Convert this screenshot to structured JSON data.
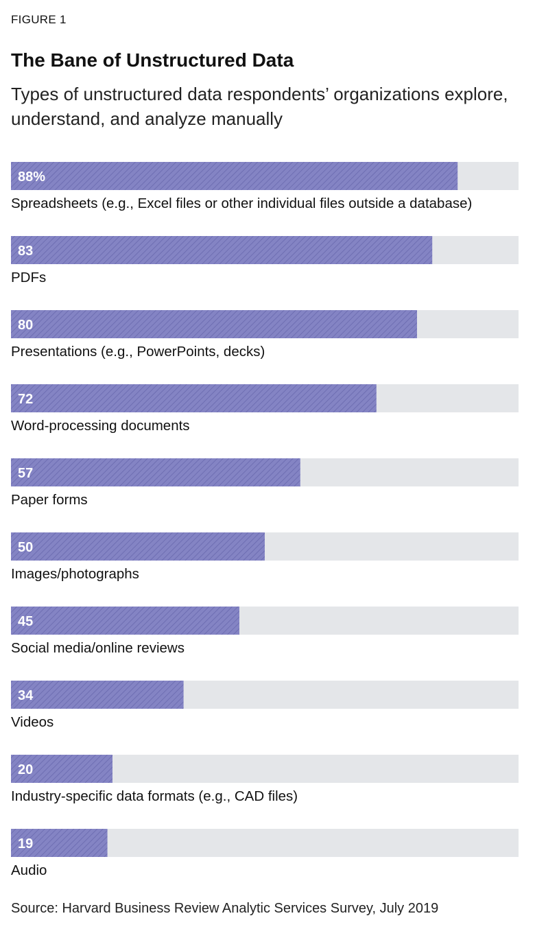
{
  "figure_label": "FIGURE 1",
  "source": "Source: Harvard Business Review Analytic Services Survey, July 2019",
  "colors": {
    "bar_fill": "#8484c4",
    "bar_hatch": "#6e6eb2",
    "track": "#e4e6e9",
    "value_text": "#ffffff",
    "label_text": "#111111"
  },
  "chart_data": {
    "type": "bar",
    "orientation": "horizontal",
    "title": "The Bane of Unstructured Data",
    "subtitle": "Types of unstructured data respondents’ organizations explore, understand, and analyze manually",
    "categories": [
      "Spreadsheets (e.g., Excel files or other individual files outside a database)",
      "PDFs",
      "Presentations (e.g., PowerPoints, decks)",
      "Word-processing documents",
      "Paper forms",
      "Images/photographs",
      "Social media/online reviews",
      "Videos",
      "Industry-specific data formats (e.g., CAD files)",
      "Audio"
    ],
    "values": [
      88,
      83,
      80,
      72,
      57,
      50,
      45,
      34,
      20,
      19
    ],
    "value_labels": [
      "88%",
      "83",
      "80",
      "72",
      "57",
      "50",
      "45",
      "34",
      "20",
      "19"
    ],
    "xlim": [
      0,
      100
    ],
    "grid": false,
    "legend": "none"
  }
}
